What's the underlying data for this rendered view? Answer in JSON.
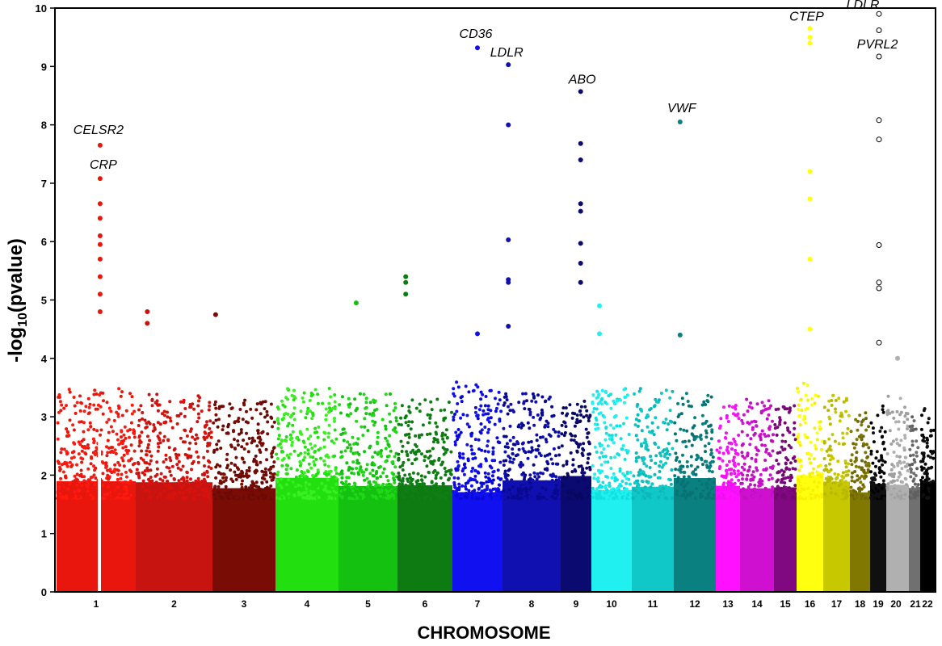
{
  "chart_data": {
    "type": "scatter",
    "subtype": "manhattan",
    "title": "",
    "xlabel": "CHROMOSOME",
    "ylabel_main": "-log",
    "ylabel_sub": "10",
    "ylabel_tail": "(pvalue)",
    "ylim": [
      0,
      10
    ],
    "yticks": [
      "0",
      "1",
      "2",
      "3",
      "4",
      "5",
      "6",
      "7",
      "8",
      "9",
      "10"
    ],
    "grid": false,
    "legend": "none",
    "chromosomes": [
      {
        "label": "1",
        "color": "#e8160c",
        "color2": "#ff1a10",
        "baseline": 2.9
      },
      {
        "label": "2",
        "color": "#c81410",
        "color2": "#d8120c",
        "baseline": 2.8
      },
      {
        "label": "3",
        "color": "#7a0c06",
        "color2": "#6a0a04",
        "baseline": 2.7
      },
      {
        "label": "4",
        "color": "#22e010",
        "color2": "#3bf020",
        "baseline": 2.9
      },
      {
        "label": "5",
        "color": "#14c010",
        "color2": "#20d818",
        "baseline": 2.8
      },
      {
        "label": "6",
        "color": "#0d7a12",
        "color2": "#107e16",
        "baseline": 2.7
      },
      {
        "label": "7",
        "color": "#1010f0",
        "color2": "#0808d8",
        "baseline": 3.0
      },
      {
        "label": "8",
        "color": "#1010b0",
        "color2": "#080890",
        "baseline": 2.8
      },
      {
        "label": "9",
        "color": "#0a0a70",
        "color2": "#080860",
        "baseline": 2.7
      },
      {
        "label": "10",
        "color": "#20f0f0",
        "color2": "#10e0e0",
        "baseline": 2.9
      },
      {
        "label": "11",
        "color": "#10c8c8",
        "color2": "#0cb8b8",
        "baseline": 2.9
      },
      {
        "label": "12",
        "color": "#0a8080",
        "color2": "#087272",
        "baseline": 2.8
      },
      {
        "label": "13",
        "color": "#ff10ff",
        "color2": "#f010f0",
        "baseline": 2.6
      },
      {
        "label": "14",
        "color": "#d010d0",
        "color2": "#c010c0",
        "baseline": 2.7
      },
      {
        "label": "15",
        "color": "#800880",
        "color2": "#700870",
        "baseline": 2.6
      },
      {
        "label": "16",
        "color": "#ffff10",
        "color2": "#f8f000",
        "baseline": 3.0
      },
      {
        "label": "17",
        "color": "#c8c800",
        "color2": "#b8b800",
        "baseline": 2.8
      },
      {
        "label": "18",
        "color": "#807800",
        "color2": "#706800",
        "baseline": 2.5
      },
      {
        "label": "19",
        "color": "#101010",
        "color2": "#000000",
        "baseline": 2.6
      },
      {
        "label": "20",
        "color": "#b0b0b0",
        "color2": "#a0a0a0",
        "baseline": 2.8
      },
      {
        "label": "21",
        "color": "#707070",
        "color2": "#606060",
        "baseline": 2.4
      },
      {
        "label": "22",
        "color": "#000000",
        "color2": "#101010",
        "baseline": 2.6
      }
    ],
    "significant_points": [
      {
        "chr": "1",
        "y": 7.65
      },
      {
        "chr": "1",
        "y": 7.08
      },
      {
        "chr": "1",
        "y": 6.65
      },
      {
        "chr": "1",
        "y": 6.4
      },
      {
        "chr": "1",
        "y": 6.1
      },
      {
        "chr": "1",
        "y": 5.95
      },
      {
        "chr": "1",
        "y": 5.7
      },
      {
        "chr": "1",
        "y": 5.4
      },
      {
        "chr": "1",
        "y": 5.1
      },
      {
        "chr": "1",
        "y": 4.8
      },
      {
        "chr": "2",
        "y": 4.8
      },
      {
        "chr": "2",
        "y": 4.6
      },
      {
        "chr": "3",
        "y": 4.75
      },
      {
        "chr": "5",
        "y": 4.95
      },
      {
        "chr": "6",
        "y": 5.4
      },
      {
        "chr": "6",
        "y": 5.3
      },
      {
        "chr": "6",
        "y": 5.1
      },
      {
        "chr": "7",
        "y": 9.32
      },
      {
        "chr": "7",
        "y": 4.42
      },
      {
        "chr": "8",
        "y": 9.03
      },
      {
        "chr": "8",
        "y": 8.0
      },
      {
        "chr": "8",
        "y": 6.03
      },
      {
        "chr": "8",
        "y": 5.35
      },
      {
        "chr": "8",
        "y": 5.3
      },
      {
        "chr": "8",
        "y": 4.55
      },
      {
        "chr": "9",
        "y": 8.57
      },
      {
        "chr": "9",
        "y": 7.68
      },
      {
        "chr": "9",
        "y": 7.4
      },
      {
        "chr": "9",
        "y": 6.65
      },
      {
        "chr": "9",
        "y": 6.52
      },
      {
        "chr": "9",
        "y": 5.97
      },
      {
        "chr": "9",
        "y": 5.63
      },
      {
        "chr": "9",
        "y": 5.3
      },
      {
        "chr": "10",
        "y": 4.9
      },
      {
        "chr": "10",
        "y": 4.42
      },
      {
        "chr": "12",
        "y": 8.05
      },
      {
        "chr": "12",
        "y": 4.4
      },
      {
        "chr": "16",
        "y": 9.65
      },
      {
        "chr": "16",
        "y": 9.5
      },
      {
        "chr": "16",
        "y": 9.4
      },
      {
        "chr": "16",
        "y": 7.2
      },
      {
        "chr": "16",
        "y": 6.73
      },
      {
        "chr": "16",
        "y": 5.7
      },
      {
        "chr": "16",
        "y": 4.5
      },
      {
        "chr": "19",
        "y": 9.9,
        "open": true
      },
      {
        "chr": "19",
        "y": 9.62,
        "open": true
      },
      {
        "chr": "19",
        "y": 9.17,
        "open": true
      },
      {
        "chr": "19",
        "y": 8.08,
        "open": true
      },
      {
        "chr": "19",
        "y": 7.75,
        "open": true
      },
      {
        "chr": "19",
        "y": 5.94,
        "open": true
      },
      {
        "chr": "19",
        "y": 5.3,
        "open": true
      },
      {
        "chr": "19",
        "y": 5.2,
        "open": true
      },
      {
        "chr": "19",
        "y": 4.27,
        "open": true
      },
      {
        "chr": "20",
        "y": 4.0
      }
    ],
    "annotations": [
      {
        "text": "CELSR2",
        "chr": "1",
        "y": 7.65
      },
      {
        "text": "CRP",
        "chr": "1",
        "y": 7.08
      },
      {
        "text": "CD36",
        "chr": "7",
        "y": 9.32
      },
      {
        "text": "LDLR",
        "chr": "8",
        "y": 9.03
      },
      {
        "text": "ABO",
        "chr": "9",
        "y": 8.57
      },
      {
        "text": "VWF",
        "chr": "12",
        "y": 8.05
      },
      {
        "text": "CTEP",
        "chr": "16",
        "y": 9.65
      },
      {
        "text": "LDLR",
        "chr": "19",
        "y": 9.9
      },
      {
        "text": "PVRL2",
        "chr": "19",
        "y": 9.17
      }
    ]
  }
}
